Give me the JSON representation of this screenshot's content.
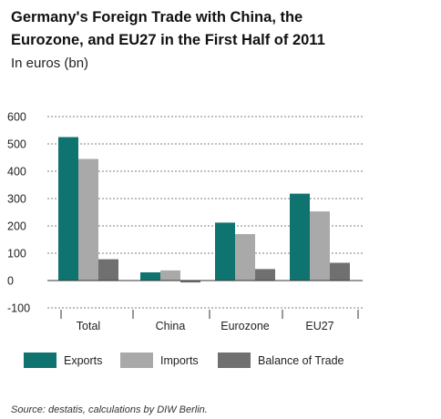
{
  "chart_data": {
    "type": "bar",
    "title_lines": [
      "Germany's Foreign Trade with China, the",
      "Eurozone, and EU27 in the First Half of 2011"
    ],
    "subtitle": "In euros (bn)",
    "source": "Source: destatis, calculations by DIW Berlin.",
    "categories": [
      "Total",
      "China",
      "Eurozone",
      "EU27"
    ],
    "series": [
      {
        "name": "Exports",
        "color": "#0f7370",
        "values": [
          525,
          30,
          212,
          318
        ]
      },
      {
        "name": "Imports",
        "color": "#a9a9a9",
        "values": [
          445,
          37,
          170,
          253
        ]
      },
      {
        "name": "Balance of Trade",
        "color": "#707070",
        "values": [
          78,
          -7,
          42,
          65
        ]
      }
    ],
    "ylim": [
      -100,
      600
    ],
    "yticks": [
      -100,
      0,
      100,
      200,
      300,
      400,
      500,
      600
    ],
    "ytick_labels": [
      "-100",
      "0",
      "100",
      "200",
      "300",
      "400",
      "500",
      "600"
    ],
    "grid": true,
    "legend_position": "bottom",
    "xlabel": "",
    "ylabel": ""
  }
}
